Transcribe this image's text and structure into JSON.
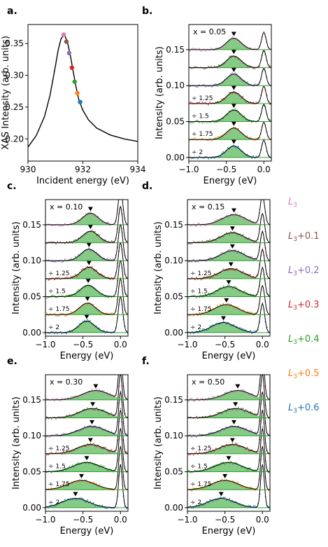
{
  "colors": {
    "fill": "#5cb85c",
    "fill_opacity": 0.75,
    "fit_line": "#000000",
    "offset_line": "#2ca02c",
    "levels": [
      "#e377c2",
      "#8c564b",
      "#9467bd",
      "#d62728",
      "#2ca02c",
      "#ff7f0e",
      "#1f77b4"
    ]
  },
  "legend": {
    "placement": "right-column",
    "entries": [
      {
        "label": "L",
        "sub": "3",
        "suffix": ""
      },
      {
        "label": "L",
        "sub": "3",
        "suffix": "+0.1"
      },
      {
        "label": "L",
        "sub": "3",
        "suffix": "+0.2"
      },
      {
        "label": "L",
        "sub": "3",
        "suffix": "+0.3"
      },
      {
        "label": "L",
        "sub": "3",
        "suffix": "+0.4"
      },
      {
        "label": "L",
        "sub": "3",
        "suffix": "+0.5"
      },
      {
        "label": "L",
        "sub": "3",
        "suffix": "+0.6"
      }
    ]
  },
  "chart_data": [
    {
      "panel": "a.",
      "type": "line",
      "xlabel": "Incident energy (eV)",
      "ylabel": "XAS Intensity (arb. units)",
      "xlim": [
        930,
        934
      ],
      "ylim": [
        0.165,
        0.38
      ],
      "xticks": [
        "930",
        "932",
        "934"
      ],
      "yticks": [
        "0.20",
        "0.25",
        "0.30",
        "0.35"
      ],
      "ytick_values": [
        0.2,
        0.25,
        0.3,
        0.35
      ],
      "xtick_values": [
        930,
        932,
        934
      ],
      "curve": {
        "x": [
          930.0,
          930.3,
          930.6,
          930.8,
          931.0,
          931.1,
          931.2,
          931.3,
          931.35,
          931.45,
          931.55,
          931.65,
          931.75,
          931.85,
          932.0,
          932.2,
          932.5,
          933.0,
          933.5,
          934.0
        ],
        "y": [
          0.187,
          0.205,
          0.235,
          0.268,
          0.315,
          0.34,
          0.357,
          0.364,
          0.362,
          0.35,
          0.33,
          0.305,
          0.282,
          0.262,
          0.245,
          0.23,
          0.217,
          0.206,
          0.2,
          0.196
        ]
      },
      "markers": {
        "x": [
          931.3,
          931.4,
          931.5,
          931.6,
          931.7,
          931.8,
          931.9
        ],
        "y": [
          0.364,
          0.353,
          0.335,
          0.312,
          0.29,
          0.272,
          0.258
        ]
      }
    },
    {
      "panel": "b.",
      "type": "line",
      "composition": "x = 0.05",
      "xlabel": "Energy (eV)",
      "ylabel": "Intensity (arb. units)",
      "xlim": [
        -1.0,
        0.1
      ],
      "ylim": [
        -0.005,
        0.185
      ],
      "xticks": [
        "−1.0",
        "−0.5",
        "0.0"
      ],
      "xtick_values": [
        -1.0,
        -0.5,
        0.0
      ],
      "yticks": [
        "0.00",
        "0.05",
        "0.10",
        "0.15"
      ],
      "ytick_values": [
        0.0,
        0.05,
        0.1,
        0.15
      ],
      "offsets": [
        0.15,
        0.125,
        0.1,
        0.075,
        0.05,
        0.025,
        0.0
      ],
      "scale_labels": [
        "",
        "",
        "",
        "÷ 1.25",
        "÷ 1.5",
        "÷ 1.75",
        "÷ 2"
      ],
      "peak_positions": [
        -0.4,
        -0.4,
        -0.4,
        -0.4,
        -0.4,
        -0.4,
        -0.4
      ],
      "peak_amplitude": 0.016,
      "peak_width": 0.14,
      "elastic_height": 0.024,
      "elastic_width": 0.03
    },
    {
      "panel": "c.",
      "type": "line",
      "composition": "x = 0.10",
      "xlabel": "Energy (eV)",
      "ylabel": "Intensity (arb. units)",
      "xlim": [
        -1.0,
        0.1
      ],
      "ylim": [
        -0.005,
        0.185
      ],
      "xticks": [
        "−1.0",
        "−0.5",
        "0.0"
      ],
      "xtick_values": [
        -1.0,
        -0.5,
        0.0
      ],
      "yticks": [
        "0.00",
        "0.05",
        "0.10",
        "0.15"
      ],
      "ytick_values": [
        0.0,
        0.05,
        0.1,
        0.15
      ],
      "offsets": [
        0.15,
        0.125,
        0.1,
        0.075,
        0.05,
        0.025,
        0.0
      ],
      "scale_labels": [
        "",
        "",
        "",
        "÷ 1.25",
        "÷ 1.5",
        "÷ 1.75",
        "÷ 2"
      ],
      "peak_positions": [
        -0.4,
        -0.4,
        -0.42,
        -0.42,
        -0.43,
        -0.44,
        -0.45
      ],
      "peak_amplitude": 0.016,
      "peak_width": 0.15,
      "elastic_height": 0.05,
      "elastic_width": 0.03
    },
    {
      "panel": "d.",
      "type": "line",
      "composition": "x = 0.15",
      "xlabel": "Energy (eV)",
      "ylabel": "Intensity (arb. units)",
      "xlim": [
        -1.0,
        0.1
      ],
      "ylim": [
        -0.005,
        0.185
      ],
      "xticks": [
        "−1.0",
        "−0.5",
        "0.0"
      ],
      "xtick_values": [
        -1.0,
        -0.5,
        0.0
      ],
      "yticks": [
        "0.00",
        "0.05",
        "0.10",
        "0.15"
      ],
      "ytick_values": [
        0.0,
        0.05,
        0.1,
        0.15
      ],
      "offsets": [
        0.15,
        0.125,
        0.1,
        0.075,
        0.05,
        0.025,
        0.0
      ],
      "scale_labels": [
        "",
        "",
        "",
        "÷ 1.25",
        "÷ 1.5",
        "÷ 1.75",
        "÷ 2"
      ],
      "peak_positions": [
        -0.38,
        -0.4,
        -0.4,
        -0.42,
        -0.45,
        -0.48,
        -0.52
      ],
      "peak_amplitude": 0.014,
      "peak_width": 0.22,
      "elastic_height": 0.04,
      "elastic_width": 0.03
    },
    {
      "panel": "e.",
      "type": "line",
      "composition": "x = 0.30",
      "xlabel": "Energy (eV)",
      "ylabel": "Intensity (arb. units)",
      "xlim": [
        -1.0,
        0.1
      ],
      "ylim": [
        -0.005,
        0.185
      ],
      "xticks": [
        "−1.0",
        "−0.5",
        "0.0"
      ],
      "xtick_values": [
        -1.0,
        -0.5,
        0.0
      ],
      "yticks": [
        "0.00",
        "0.05",
        "0.10",
        "0.15"
      ],
      "ytick_values": [
        0.0,
        0.05,
        0.1,
        0.15
      ],
      "offsets": [
        0.15,
        0.125,
        0.1,
        0.075,
        0.05,
        0.025,
        0.0
      ],
      "scale_labels": [
        "",
        "",
        "",
        "÷ 1.25",
        "÷ 1.5",
        "÷ 1.75",
        "÷ 2"
      ],
      "peak_positions": [
        -0.33,
        -0.37,
        -0.38,
        -0.4,
        -0.45,
        -0.52,
        -0.6
      ],
      "peak_amplitude": 0.013,
      "peak_width": 0.25,
      "elastic_height": 0.06,
      "elastic_width": 0.025
    },
    {
      "panel": "f.",
      "type": "line",
      "composition": "x = 0.50",
      "xlabel": "Energy (eV)",
      "ylabel": "Intensity (arb. units)",
      "xlim": [
        -1.0,
        0.1
      ],
      "ylim": [
        -0.005,
        0.185
      ],
      "xticks": [
        "−1.0",
        "−0.5",
        "0.0"
      ],
      "xtick_values": [
        -1.0,
        -0.5,
        0.0
      ],
      "yticks": [
        "0.00",
        "0.05",
        "0.10",
        "0.15"
      ],
      "ytick_values": [
        0.0,
        0.05,
        0.1,
        0.15
      ],
      "offsets": [
        0.15,
        0.125,
        0.1,
        0.075,
        0.05,
        0.025,
        0.0
      ],
      "scale_labels": [
        "",
        "",
        "",
        "÷ 1.25",
        "÷ 1.5",
        "÷ 1.75",
        "÷ 2"
      ],
      "peak_positions": [
        -0.33,
        -0.36,
        -0.38,
        -0.4,
        -0.45,
        -0.5,
        -0.55
      ],
      "peak_amplitude": 0.013,
      "peak_width": 0.25,
      "elastic_height": 0.06,
      "elastic_width": 0.025
    }
  ]
}
